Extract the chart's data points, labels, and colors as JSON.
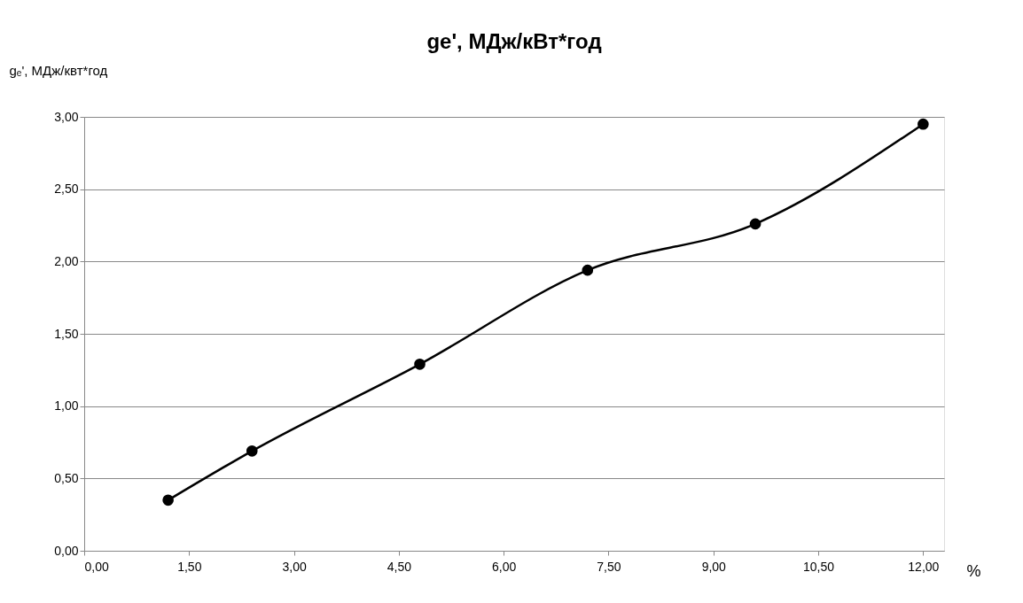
{
  "chart_data": {
    "type": "line",
    "title": "ge', МДж/кВт*год",
    "xlabel": "%",
    "ylabel": "gₑ', МДж/квт*год",
    "x": [
      1.2,
      2.4,
      4.8,
      7.2,
      9.6,
      12.0
    ],
    "series": [
      {
        "color": "#000000",
        "values": [
          0.35,
          0.69,
          1.29,
          1.94,
          2.26,
          2.95
        ]
      }
    ],
    "xlim": [
      0,
      12.3
    ],
    "xticks": [
      {
        "value": 0,
        "label": "0,00"
      },
      {
        "value": 1.5,
        "label": "1,50"
      },
      {
        "value": 3,
        "label": "3,00"
      },
      {
        "value": 4.5,
        "label": "4,50"
      },
      {
        "value": 6,
        "label": "6,00"
      },
      {
        "value": 7.5,
        "label": "7,50"
      },
      {
        "value": 9,
        "label": "9,00"
      },
      {
        "value": 10.5,
        "label": "10,50"
      },
      {
        "value": 12,
        "label": "12,00"
      }
    ],
    "ylim": [
      0,
      3
    ],
    "yticks": [
      {
        "value": 0,
        "label": "0,00"
      },
      {
        "value": 0.5,
        "label": "0,50"
      },
      {
        "value": 1,
        "label": "1,00"
      },
      {
        "value": 1.5,
        "label": "1,50"
      },
      {
        "value": 2,
        "label": "2,00"
      },
      {
        "value": 2.5,
        "label": "2,50"
      },
      {
        "value": 3,
        "label": "3,00"
      }
    ],
    "grid": "y",
    "marker": "circle",
    "line_style": "solid"
  }
}
